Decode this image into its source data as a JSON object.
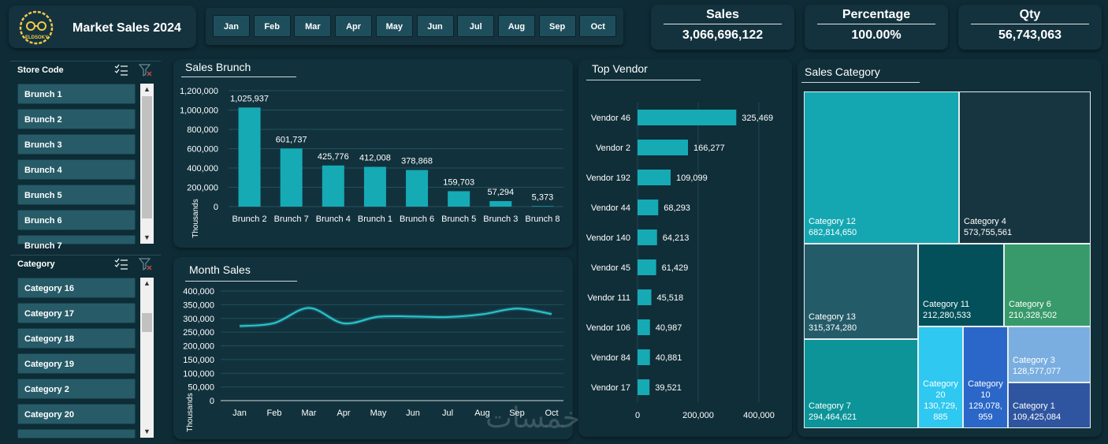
{
  "header": {
    "logo_text": "ELDSOKY",
    "title": "Market Sales 2024",
    "months": [
      "Jan",
      "Feb",
      "Mar",
      "Apr",
      "May",
      "Jun",
      "Jul",
      "Aug",
      "Sep",
      "Oct"
    ]
  },
  "kpis": {
    "sales": {
      "label": "Sales",
      "value": "3,066,696,122"
    },
    "percentage": {
      "label": "Percentage",
      "value": "100.00%"
    },
    "qty": {
      "label": "Qty",
      "value": "56,743,063"
    }
  },
  "slicers": {
    "store": {
      "header": "Store Code",
      "items": [
        "Brunch 1",
        "Brunch 2",
        "Brunch 3",
        "Brunch 4",
        "Brunch 5",
        "Brunch 6",
        "Brunch 7"
      ]
    },
    "category": {
      "header": "Category",
      "items": [
        "Category 16",
        "Category 17",
        "Category 18",
        "Category 19",
        "Category 2",
        "Category 20",
        ""
      ]
    }
  },
  "colors": {
    "bar": "#16aab5",
    "line": "#2cc6cf",
    "bg": "#0f2c36"
  },
  "watermark": "خمسات",
  "chart_data": [
    {
      "id": "sales_brunch",
      "type": "bar",
      "title": "Sales Brunch",
      "ylabel": "Thousands",
      "categories": [
        "Brunch 2",
        "Brunch 7",
        "Brunch 4",
        "Brunch 1",
        "Brunch 6",
        "Brunch 5",
        "Brunch 3",
        "Brunch 8"
      ],
      "values": [
        1025937,
        601737,
        425776,
        412008,
        378868,
        159703,
        57294,
        5373
      ],
      "labels": [
        "1,025,937",
        "601,737",
        "425,776",
        "412,008",
        "378,868",
        "159,703",
        "57,294",
        "5,373"
      ],
      "yticks": [
        "0",
        "200,000",
        "400,000",
        "600,000",
        "800,000",
        "1,000,000",
        "1,200,000"
      ],
      "ylim": [
        0,
        1200000
      ]
    },
    {
      "id": "month_sales",
      "type": "line",
      "title": "Month Sales",
      "ylabel": "Thousands",
      "categories": [
        "Jan",
        "Feb",
        "Mar",
        "Apr",
        "May",
        "Jun",
        "Jul",
        "Aug",
        "Sep",
        "Oct"
      ],
      "values": [
        272000,
        283000,
        338000,
        282000,
        306000,
        307000,
        305000,
        315000,
        336000,
        316000
      ],
      "yticks": [
        "0",
        "50,000",
        "100,000",
        "150,000",
        "200,000",
        "250,000",
        "300,000",
        "350,000",
        "400,000"
      ],
      "ylim": [
        0,
        400000
      ]
    },
    {
      "id": "top_vendor",
      "type": "bar",
      "orientation": "horizontal",
      "title": "Top Vendor",
      "categories": [
        "Vendor 46",
        "Vendor 2",
        "Vendor 192",
        "Vendor 44",
        "Vendor 140",
        "Vendor 45",
        "Vendor 111",
        "Vendor 106",
        "Vendor 84",
        "Vendor 17"
      ],
      "values": [
        325469,
        166277,
        109099,
        68293,
        64213,
        61429,
        45518,
        40987,
        40881,
        39521
      ],
      "labels": [
        "325,469",
        "166,277",
        "109,099",
        "68,293",
        "64,213",
        "61,429",
        "45,518",
        "40,987",
        "40,881",
        "39,521"
      ],
      "xticks": [
        "0",
        "200,000",
        "400,000"
      ],
      "xlim": [
        0,
        400000
      ]
    },
    {
      "id": "sales_category",
      "type": "treemap",
      "title": "Sales Category",
      "items": [
        {
          "name": "Category 12",
          "value": "682,814,650",
          "color": "#14a7b1"
        },
        {
          "name": "Category 4",
          "value": "573,755,561",
          "color": "#173541"
        },
        {
          "name": "Category 13",
          "value": "315,374,280",
          "color": "#245b68"
        },
        {
          "name": "Category 11",
          "value": "212,280,533",
          "color": "#03505a"
        },
        {
          "name": "Category 6",
          "value": "210,328,502",
          "color": "#389a6b"
        },
        {
          "name": "Category 7",
          "value": "294,464,621",
          "color": "#0c9498"
        },
        {
          "name": "Category 20",
          "value": "130,729,885",
          "value_lines": [
            "Category",
            "20",
            "130,729,",
            "885"
          ],
          "color": "#2ec8f0"
        },
        {
          "name": "Category 10",
          "value": "129,078,959",
          "value_lines": [
            "Category",
            "10",
            "129,078,",
            "959"
          ],
          "color": "#2b67c8"
        },
        {
          "name": "Category 3",
          "value": "128,577,077",
          "color": "#7aaee0"
        },
        {
          "name": "Category 1",
          "value": "109,425,084",
          "color": "#2f55a0"
        }
      ]
    }
  ]
}
